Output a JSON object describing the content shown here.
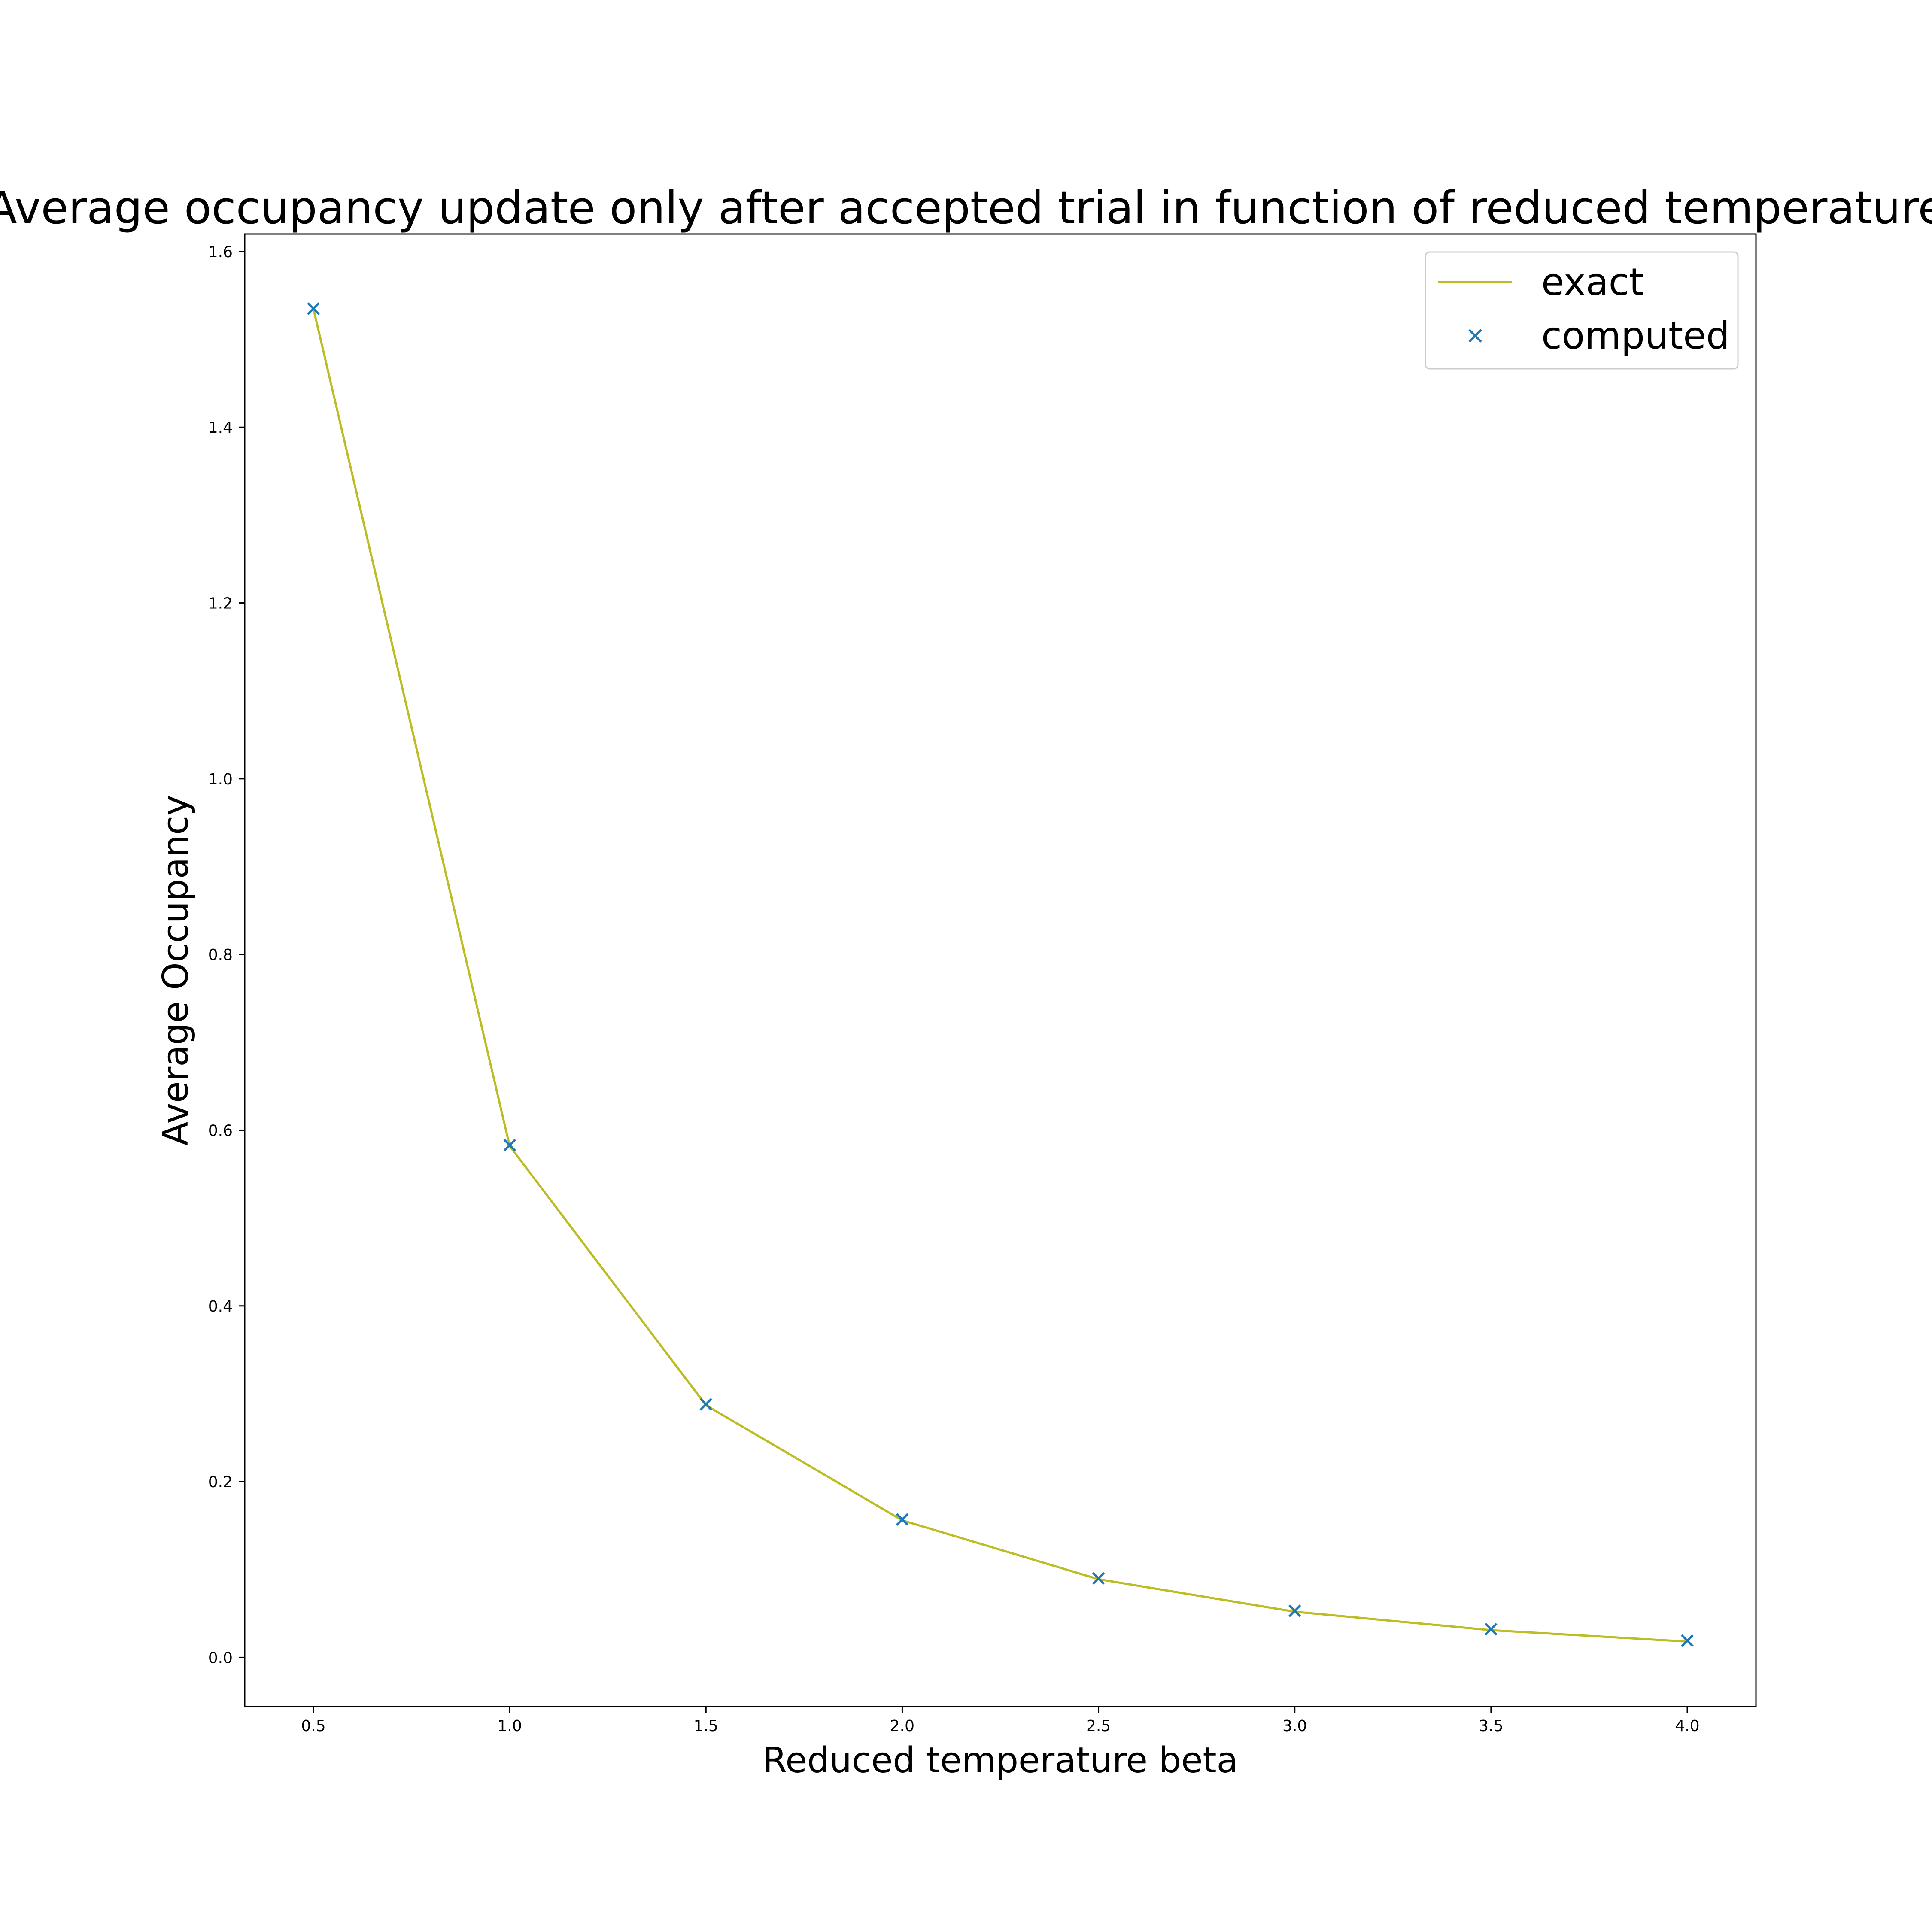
{
  "chart_data": {
    "type": "line",
    "title": "Average occupancy update only after accepted trial in function of reduced temperature",
    "xlabel": "Reduced temperature beta",
    "ylabel": "Average Occupancy",
    "xlim": [
      0.325,
      4.175
    ],
    "ylim": [
      -0.056,
      1.62
    ],
    "xticks": [
      "0.5",
      "1.0",
      "1.5",
      "2.0",
      "2.5",
      "3.0",
      "3.5",
      "4.0"
    ],
    "yticks": [
      "0.0",
      "0.2",
      "0.4",
      "0.6",
      "0.8",
      "1.0",
      "1.2",
      "1.4",
      "1.6"
    ],
    "grid": false,
    "legend_position": "top-right",
    "x": [
      0.5,
      1.0,
      1.5,
      2.0,
      2.5,
      3.0,
      3.5,
      4.0
    ],
    "series": [
      {
        "name": "exact",
        "kind": "line",
        "color": "#bcbd22",
        "values": [
          1.535,
          0.582,
          0.287,
          0.156,
          0.089,
          0.052,
          0.031,
          0.018
        ]
      },
      {
        "name": "computed",
        "kind": "scatter",
        "marker": "x",
        "color": "#1f77b4",
        "values": [
          1.535,
          0.583,
          0.288,
          0.157,
          0.09,
          0.053,
          0.032,
          0.019
        ]
      }
    ]
  }
}
